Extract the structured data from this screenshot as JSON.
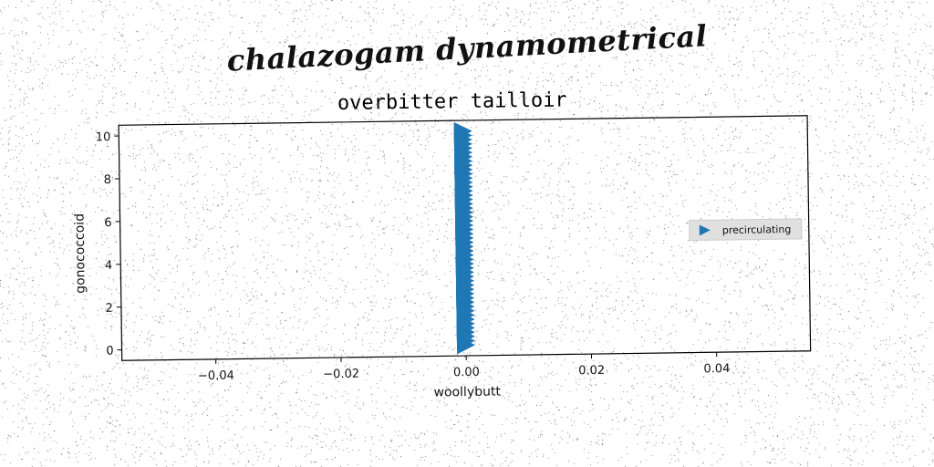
{
  "figure": {
    "headline": "chalazogam dynamometrical"
  },
  "chart_data": {
    "type": "scatter",
    "title": "overbitter tailloir",
    "xlabel": "woollybutt",
    "ylabel": "gonococcoid",
    "xlim": [
      -0.055,
      0.055
    ],
    "ylim": [
      -0.5,
      10.5
    ],
    "xticks": [
      -0.04,
      -0.02,
      0.0,
      0.02,
      0.04
    ],
    "xtick_labels": [
      "−0.04",
      "−0.02",
      "0.00",
      "0.02",
      "0.04"
    ],
    "yticks": [
      0,
      2,
      4,
      6,
      8,
      10
    ],
    "ytick_labels": [
      "0",
      "2",
      "4",
      "6",
      "8",
      "10"
    ],
    "grid": false,
    "legend_position": "right",
    "marker": "triangle-right",
    "series": [
      {
        "name": "precirculating",
        "color": "#1f77b4",
        "x": [
          0,
          0,
          0,
          0,
          0,
          0,
          0,
          0,
          0,
          0,
          0,
          0,
          0,
          0,
          0,
          0,
          0,
          0,
          0,
          0,
          0,
          0,
          0,
          0,
          0,
          0,
          0,
          0,
          0,
          0,
          0,
          0,
          0,
          0,
          0,
          0,
          0,
          0,
          0,
          0,
          0,
          0,
          0,
          0,
          0,
          0,
          0,
          0,
          0,
          0,
          0
        ],
        "y": [
          0.0,
          0.2,
          0.4,
          0.6,
          0.8,
          1.0,
          1.2,
          1.4,
          1.6,
          1.8,
          2.0,
          2.2,
          2.4,
          2.6,
          2.8,
          3.0,
          3.2,
          3.4,
          3.6,
          3.8,
          4.0,
          4.2,
          4.4,
          4.6,
          4.8,
          5.0,
          5.2,
          5.4,
          5.6,
          5.8,
          6.0,
          6.2,
          6.4,
          6.6,
          6.8,
          7.0,
          7.2,
          7.4,
          7.6,
          7.8,
          8.0,
          8.2,
          8.4,
          8.6,
          8.8,
          9.0,
          9.2,
          9.4,
          9.6,
          9.8,
          10.0
        ]
      }
    ]
  }
}
